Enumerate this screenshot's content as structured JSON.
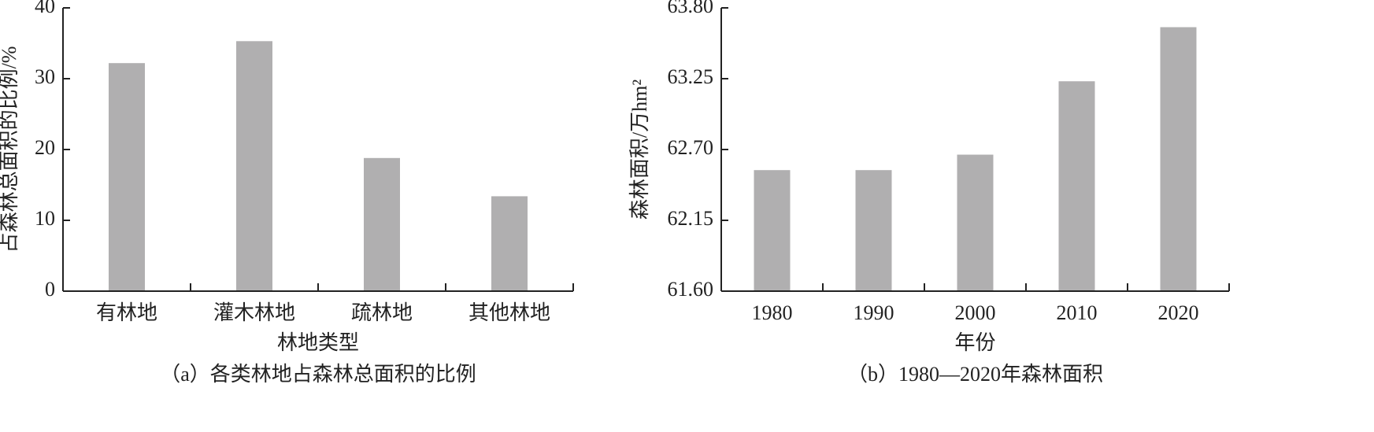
{
  "chart_data": [
    {
      "type": "bar",
      "title": "（a）各类林地占森林总面积的比例",
      "x_label": "林地类型",
      "y_label": "占森林总面积的比例/%",
      "categories": [
        "有林地",
        "灌木林地",
        "疏林地",
        "其他林地"
      ],
      "values": [
        32.2,
        35.3,
        18.8,
        13.4
      ],
      "color": "#b0afb0",
      "ylim": [
        0,
        40
      ],
      "yticks": [
        0,
        10,
        20,
        30,
        40
      ]
    },
    {
      "type": "bar",
      "title": "（b）1980—2020年森林面积",
      "x_label": "年份",
      "y_label": "森林面积/万hm²",
      "categories": [
        "1980",
        "1990",
        "2000",
        "2010",
        "2020"
      ],
      "values": [
        62.54,
        62.54,
        62.66,
        63.23,
        63.65
      ],
      "color": "#b0afb0",
      "ylim": [
        61.6,
        63.8
      ],
      "yticks": [
        {
          "value": 61.6,
          "label": "61.60"
        },
        62.15,
        {
          "value": 62.7,
          "label": "62.70"
        },
        63.25,
        {
          "value": 63.8,
          "label": "63.80"
        }
      ]
    }
  ]
}
